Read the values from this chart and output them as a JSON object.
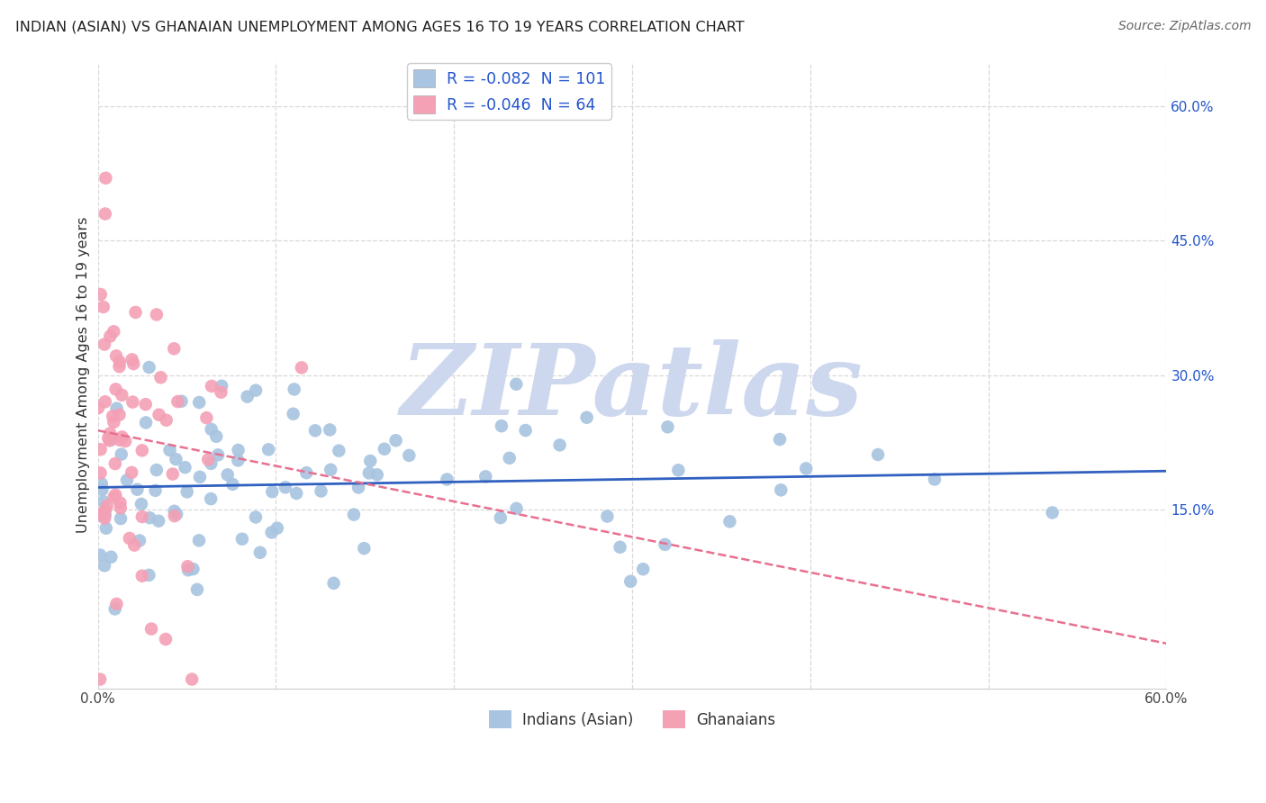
{
  "title": "INDIAN (ASIAN) VS GHANAIAN UNEMPLOYMENT AMONG AGES 16 TO 19 YEARS CORRELATION CHART",
  "source": "Source: ZipAtlas.com",
  "ylabel": "Unemployment Among Ages 16 to 19 years",
  "xlim": [
    0.0,
    0.6
  ],
  "ylim": [
    -0.05,
    0.65
  ],
  "xtick_vals": [
    0.0,
    0.1,
    0.2,
    0.3,
    0.4,
    0.5,
    0.6
  ],
  "xtick_labels": [
    "0.0%",
    "",
    "",
    "",
    "",
    "",
    "60.0%"
  ],
  "ytick_vals_right": [
    0.15,
    0.3,
    0.45,
    0.6
  ],
  "ytick_labels_right": [
    "15.0%",
    "30.0%",
    "45.0%",
    "60.0%"
  ],
  "R_indian": -0.082,
  "N_indian": 101,
  "R_ghanaian": -0.046,
  "N_ghanaian": 64,
  "indian_color": "#a8c4e0",
  "ghanaian_color": "#f4a0b5",
  "indian_line_color": "#3060c0",
  "ghanaian_line_color": "#e87090",
  "watermark_text": "ZIPatlas",
  "watermark_color": "#cdd8ee",
  "background_color": "#ffffff",
  "grid_color": "#d8d8d8",
  "legend_label_color": "#2255cc",
  "seed": 7
}
